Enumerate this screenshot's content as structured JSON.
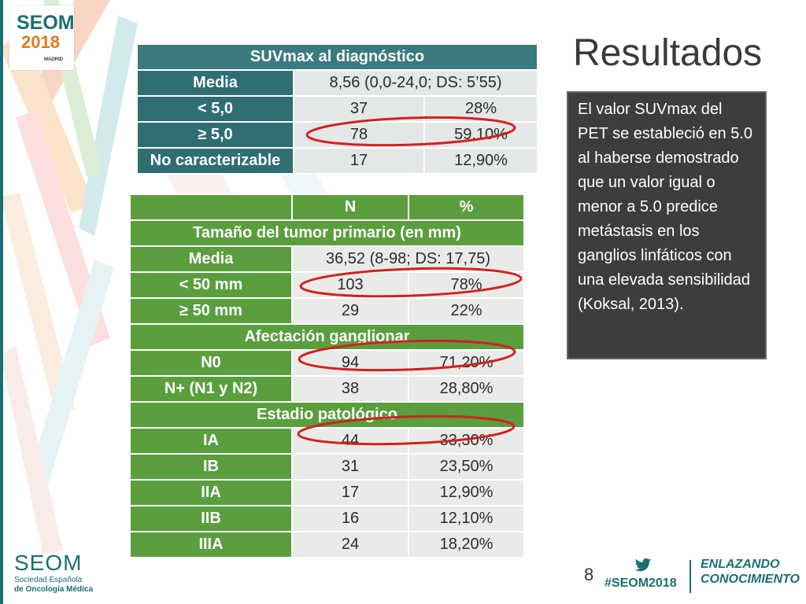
{
  "header": {
    "logo_org": "SEOM",
    "logo_year": "2018",
    "logo_city": "MADRID",
    "title": "Resultados"
  },
  "suv_table": {
    "title": "SUVmax al diagnóstico",
    "rows": [
      {
        "label": "Media",
        "value": "8,56 (0,0-24,0; DS: 5’55)"
      },
      {
        "label": "< 5,0",
        "n": "37",
        "pct": "28%"
      },
      {
        "label": "≥ 5,0",
        "n": "78",
        "pct": "59,10%"
      },
      {
        "label": "No caracterizable",
        "n": "17",
        "pct": "12,90%"
      }
    ]
  },
  "tumor_table": {
    "col_n": "N",
    "col_pct": "%",
    "section_size": "Tamaño del tumor primario (en mm)",
    "size_rows": [
      {
        "label": "Media",
        "value": "36,52 (8-98; DS: 17,75)"
      },
      {
        "label": "< 50 mm",
        "n": "103",
        "pct": "78%"
      },
      {
        "label": "≥ 50 mm",
        "n": "29",
        "pct": "22%"
      }
    ],
    "section_nodes": "Afectación ganglionar",
    "node_rows": [
      {
        "label": "N0",
        "n": "94",
        "pct": "71,20%"
      },
      {
        "label": "N+ (N1 y N2)",
        "n": "38",
        "pct": "28,80%"
      }
    ],
    "section_stage": "Estadio patológico",
    "stage_rows": [
      {
        "label": "IA",
        "n": "44",
        "pct": "33,30%"
      },
      {
        "label": "IB",
        "n": "31",
        "pct": "23,50%"
      },
      {
        "label": "IIA",
        "n": "17",
        "pct": "12,90%"
      },
      {
        "label": "IIB",
        "n": "16",
        "pct": "12,10%"
      },
      {
        "label": "IIIA",
        "n": "24",
        "pct": "18,20%"
      }
    ]
  },
  "note": "El valor SUVmax del PET se estableció en 5.0 al haberse demostrado que un valor igual o menor a 5.0 predice metástasis en los ganglios linfáticos con una elevada sensibilidad (Koksal, 2013).",
  "footer": {
    "org_name": "SEOM",
    "org_line1": "Sociedad Española",
    "org_line2": "de Oncología Médica",
    "page_number": "8",
    "hashtag": "#SEOM2018",
    "slogan_line1": "ENLAZANDO",
    "slogan_line2": "CONOCIMIENTO"
  },
  "colors": {
    "teal": "#2f6e72",
    "green": "#5a9e3e",
    "annotation_red": "#d42020"
  }
}
